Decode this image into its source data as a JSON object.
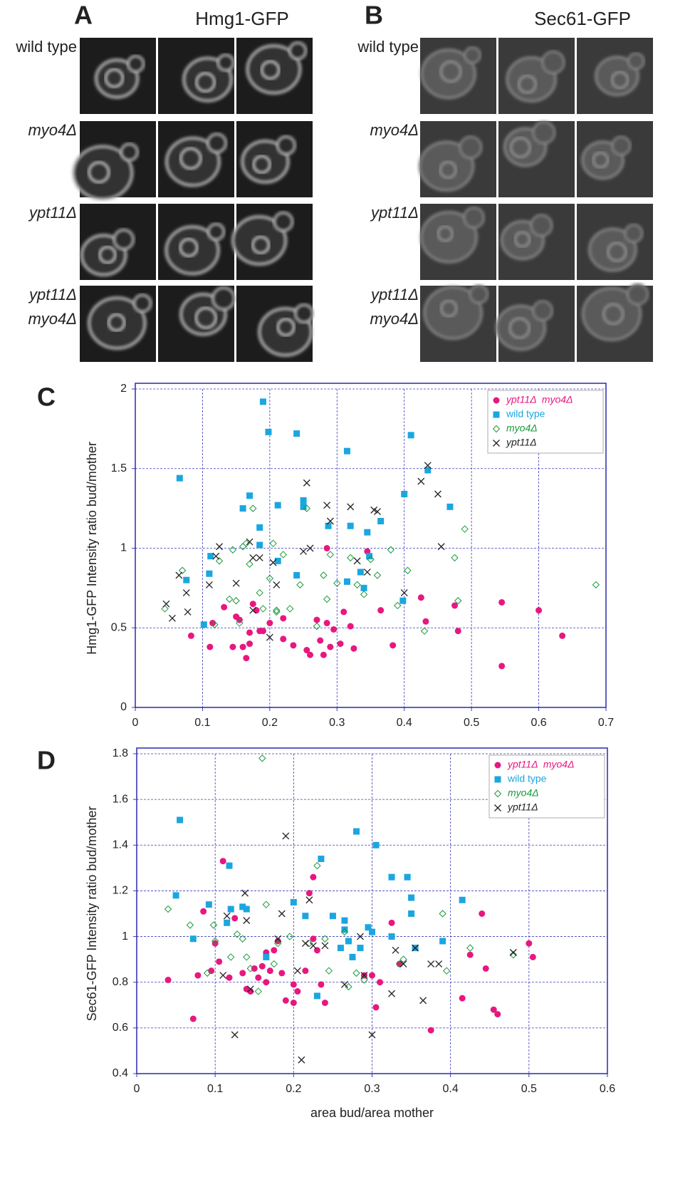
{
  "panels": [
    {
      "label": "A",
      "title": "Hmg1-GFP",
      "rows": [
        [
          "wild type"
        ],
        [
          "myo4Δ"
        ],
        [
          "ypt11Δ"
        ],
        [
          "ypt11Δ",
          "myo4Δ"
        ]
      ]
    },
    {
      "label": "B",
      "title": "Sec61-GFP",
      "rows": [
        [
          "wild type"
        ],
        [
          "myo4Δ"
        ],
        [
          "ypt11Δ"
        ],
        [
          "ypt11Δ",
          "myo4Δ"
        ]
      ]
    }
  ],
  "chart_data": [
    {
      "type": "scatter",
      "label": "C",
      "ylabel": "Hmg1-GFP Intensity ratio bud/mother",
      "xlim": [
        0,
        0.7
      ],
      "ylim": [
        0,
        2
      ],
      "xticks": [
        0,
        0.1,
        0.2,
        0.3,
        0.4,
        0.5,
        0.6,
        0.7
      ],
      "yticks": [
        0,
        0.5,
        1,
        1.5,
        2
      ],
      "grid": true,
      "legend": "top-right",
      "series": [
        {
          "name": "ypt11Δ  myo4Δ",
          "color": "#e8177f",
          "marker": "circle",
          "x": [
            0.083,
            0.111,
            0.115,
            0.132,
            0.145,
            0.15,
            0.155,
            0.16,
            0.165,
            0.17,
            0.17,
            0.175,
            0.18,
            0.185,
            0.19,
            0.2,
            0.22,
            0.22,
            0.235,
            0.255,
            0.26,
            0.27,
            0.275,
            0.28,
            0.285,
            0.285,
            0.29,
            0.295,
            0.305,
            0.31,
            0.32,
            0.325,
            0.345,
            0.365,
            0.383,
            0.425,
            0.432,
            0.475,
            0.48,
            0.545,
            0.545,
            0.6,
            0.635
          ],
          "values": [
            0.45,
            0.38,
            0.53,
            0.63,
            0.38,
            0.57,
            0.55,
            0.38,
            0.31,
            0.4,
            0.47,
            0.65,
            0.61,
            0.48,
            0.48,
            0.53,
            0.43,
            0.56,
            0.39,
            0.36,
            0.33,
            0.55,
            0.42,
            0.33,
            0.53,
            1.0,
            0.38,
            0.49,
            0.4,
            0.6,
            0.51,
            0.37,
            0.98,
            0.61,
            0.39,
            0.69,
            0.54,
            0.64,
            0.48,
            0.26,
            0.66,
            0.61,
            0.45
          ]
        },
        {
          "name": "wild type",
          "color": "#1ba6e0",
          "marker": "square",
          "x": [
            0.066,
            0.19,
            0.198,
            0.24,
            0.41,
            0.315,
            0.435,
            0.4,
            0.17,
            0.25,
            0.468,
            0.212,
            0.16,
            0.25,
            0.365,
            0.32,
            0.287,
            0.345,
            0.185,
            0.185,
            0.112,
            0.212,
            0.348,
            0.335,
            0.24,
            0.11,
            0.076,
            0.315,
            0.34,
            0.398,
            0.102
          ],
          "values": [
            1.44,
            1.92,
            1.73,
            1.72,
            1.71,
            1.61,
            1.49,
            1.34,
            1.33,
            1.3,
            1.26,
            1.27,
            1.25,
            1.26,
            1.17,
            1.14,
            1.14,
            1.1,
            1.13,
            1.02,
            0.95,
            0.92,
            0.95,
            0.85,
            0.83,
            0.84,
            0.8,
            0.79,
            0.75,
            0.67,
            0.52
          ]
        },
        {
          "name": "myo4Δ",
          "color": "#1a9a3a",
          "marker": "diamond",
          "x": [
            0.044,
            0.07,
            0.118,
            0.125,
            0.145,
            0.15,
            0.155,
            0.16,
            0.165,
            0.17,
            0.175,
            0.185,
            0.19,
            0.2,
            0.205,
            0.21,
            0.22,
            0.23,
            0.245,
            0.255,
            0.27,
            0.28,
            0.285,
            0.29,
            0.3,
            0.32,
            0.33,
            0.34,
            0.35,
            0.36,
            0.38,
            0.39,
            0.405,
            0.43,
            0.475,
            0.48,
            0.49,
            0.685,
            0.14,
            0.21
          ],
          "values": [
            0.62,
            0.86,
            0.52,
            0.92,
            0.99,
            0.67,
            0.53,
            1.01,
            1.03,
            0.9,
            1.25,
            0.72,
            0.62,
            0.81,
            1.03,
            0.6,
            0.96,
            0.62,
            0.77,
            1.25,
            0.51,
            0.83,
            0.68,
            0.96,
            0.78,
            0.94,
            0.77,
            0.71,
            0.93,
            0.83,
            0.99,
            0.64,
            0.86,
            0.48,
            0.94,
            0.67,
            1.12,
            0.77,
            0.68,
            0.61
          ]
        },
        {
          "name": "ypt11Δ",
          "color": "#222222",
          "marker": "x",
          "x": [
            0.046,
            0.055,
            0.065,
            0.076,
            0.078,
            0.11,
            0.12,
            0.125,
            0.17,
            0.15,
            0.175,
            0.185,
            0.175,
            0.2,
            0.205,
            0.21,
            0.255,
            0.26,
            0.285,
            0.29,
            0.32,
            0.355,
            0.36,
            0.33,
            0.4,
            0.425,
            0.435,
            0.45,
            0.455,
            0.25,
            0.345
          ],
          "values": [
            0.65,
            0.56,
            0.83,
            0.72,
            0.6,
            0.77,
            0.95,
            1.01,
            1.04,
            0.78,
            0.94,
            0.94,
            0.61,
            0.44,
            0.91,
            0.77,
            1.41,
            1.0,
            1.27,
            1.17,
            1.26,
            1.24,
            1.23,
            0.92,
            0.72,
            1.42,
            1.52,
            1.34,
            1.01,
            0.98,
            0.85
          ]
        }
      ]
    },
    {
      "type": "scatter",
      "label": "D",
      "ylabel": "Sec61-GFP Intensity ratio bud/mother",
      "xlabel": "area bud/area mother",
      "xlim": [
        0,
        0.6
      ],
      "ylim": [
        0.4,
        1.8
      ],
      "xticks": [
        0,
        0.1,
        0.2,
        0.3,
        0.4,
        0.5,
        0.6
      ],
      "yticks": [
        0.4,
        0.6,
        0.8,
        1,
        1.2,
        1.4,
        1.6,
        1.8
      ],
      "grid": true,
      "legend": "top-right",
      "series": [
        {
          "name": "ypt11Δ  myo4Δ",
          "color": "#e8177f",
          "marker": "circle",
          "x": [
            0.04,
            0.072,
            0.078,
            0.085,
            0.095,
            0.1,
            0.105,
            0.11,
            0.118,
            0.125,
            0.135,
            0.14,
            0.145,
            0.15,
            0.155,
            0.16,
            0.165,
            0.165,
            0.17,
            0.175,
            0.18,
            0.185,
            0.19,
            0.2,
            0.2,
            0.205,
            0.215,
            0.22,
            0.225,
            0.225,
            0.23,
            0.235,
            0.24,
            0.29,
            0.3,
            0.305,
            0.31,
            0.325,
            0.335,
            0.375,
            0.415,
            0.425,
            0.44,
            0.445,
            0.455,
            0.46,
            0.5,
            0.505
          ],
          "values": [
            0.81,
            0.64,
            0.83,
            1.11,
            0.85,
            0.97,
            0.89,
            1.33,
            0.82,
            1.08,
            0.84,
            0.77,
            0.76,
            0.86,
            0.82,
            0.87,
            0.8,
            0.93,
            0.85,
            0.94,
            0.98,
            0.84,
            0.72,
            0.71,
            0.79,
            0.76,
            0.85,
            1.19,
            1.26,
            0.99,
            0.94,
            0.79,
            0.71,
            0.83,
            0.83,
            0.69,
            0.8,
            1.06,
            0.88,
            0.59,
            0.73,
            0.92,
            1.1,
            0.86,
            0.68,
            0.66,
            0.97,
            0.91
          ]
        },
        {
          "name": "wild type",
          "color": "#1ba6e0",
          "marker": "square",
          "x": [
            0.05,
            0.055,
            0.072,
            0.092,
            0.115,
            0.118,
            0.12,
            0.135,
            0.14,
            0.165,
            0.2,
            0.215,
            0.23,
            0.235,
            0.25,
            0.26,
            0.265,
            0.265,
            0.27,
            0.275,
            0.28,
            0.285,
            0.295,
            0.3,
            0.305,
            0.325,
            0.325,
            0.345,
            0.35,
            0.35,
            0.355,
            0.39,
            0.415
          ],
          "values": [
            1.18,
            1.51,
            0.99,
            1.14,
            1.06,
            1.31,
            1.12,
            1.13,
            1.12,
            0.91,
            1.15,
            1.09,
            0.74,
            1.34,
            1.09,
            0.95,
            1.07,
            1.03,
            0.98,
            0.91,
            1.46,
            0.95,
            1.04,
            1.02,
            1.4,
            1.26,
            1.0,
            1.26,
            1.17,
            1.1,
            0.95,
            0.98,
            1.16
          ]
        },
        {
          "name": "myo4Δ",
          "color": "#1a9a3a",
          "marker": "diamond",
          "x": [
            0.04,
            0.068,
            0.09,
            0.098,
            0.1,
            0.12,
            0.128,
            0.135,
            0.14,
            0.145,
            0.155,
            0.16,
            0.165,
            0.175,
            0.18,
            0.195,
            0.22,
            0.23,
            0.24,
            0.245,
            0.265,
            0.27,
            0.28,
            0.29,
            0.335,
            0.34,
            0.39,
            0.395,
            0.425,
            0.48
          ],
          "values": [
            1.12,
            1.05,
            0.84,
            1.05,
            0.98,
            0.91,
            1.01,
            0.99,
            0.91,
            0.86,
            0.76,
            1.78,
            1.14,
            0.88,
            0.97,
            1.0,
            0.97,
            1.31,
            0.99,
            0.85,
            1.02,
            0.78,
            0.84,
            0.81,
            0.88,
            0.9,
            1.1,
            0.85,
            0.95,
            0.92
          ]
        },
        {
          "name": "ypt11Δ",
          "color": "#222222",
          "marker": "x",
          "x": [
            0.11,
            0.115,
            0.125,
            0.138,
            0.14,
            0.145,
            0.18,
            0.185,
            0.19,
            0.205,
            0.21,
            0.215,
            0.22,
            0.225,
            0.24,
            0.265,
            0.285,
            0.29,
            0.3,
            0.325,
            0.33,
            0.34,
            0.355,
            0.365,
            0.375,
            0.385,
            0.48
          ],
          "values": [
            0.83,
            1.09,
            0.57,
            1.19,
            1.07,
            0.77,
            0.99,
            1.1,
            1.44,
            0.85,
            0.46,
            0.97,
            1.16,
            0.96,
            0.96,
            0.79,
            1.0,
            0.83,
            0.57,
            0.75,
            0.94,
            0.88,
            0.95,
            0.72,
            0.88,
            0.88,
            0.93
          ]
        }
      ]
    }
  ]
}
